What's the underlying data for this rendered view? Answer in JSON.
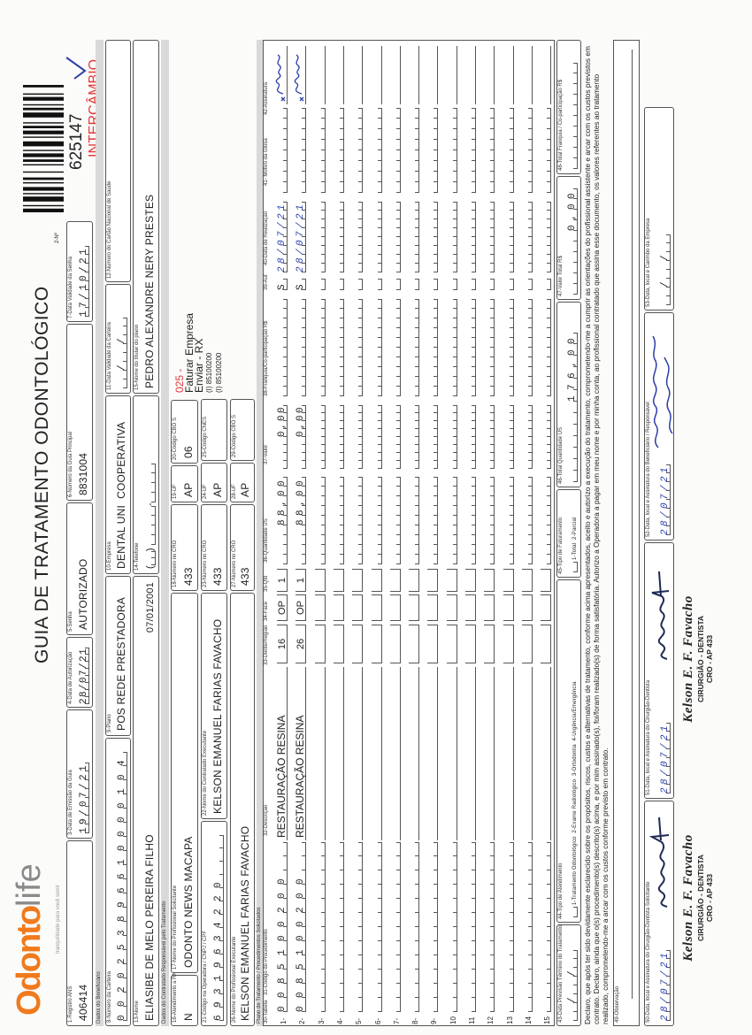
{
  "logo": {
    "brand_orange": "Odonto",
    "brand_gray": "life",
    "tagline": "tranquilidade para você sorrir",
    "color_orange": "#f07a1c"
  },
  "title": "GUIA DE TRATAMENTO ODONTOLÓGICO",
  "guide_number_label": "2-Nº",
  "barcode_number": "625147",
  "intercambio": "INTERCÂMBIO",
  "accent_red": "#e03a3a",
  "sections": {
    "beneficiario": "Dados do Beneficiário",
    "contratado": "Dados do Contratado Responsável pelo Tratamento",
    "plano": "Plano de Tratamento / Procedimentos Solicitados"
  },
  "fields": {
    "f1": {
      "label": "1-Registro ANS",
      "value": "406414"
    },
    "f3": {
      "label": "3-Data de Emissão da Guia",
      "value": "19/07/21"
    },
    "f4": {
      "label": "4-Data de Autorização",
      "value": "28/07/21"
    },
    "f5": {
      "label": "5-Senha",
      "value": "AUTORIZADO"
    },
    "f6": {
      "label": "6-Número da Guia Principal",
      "value": "8831004"
    },
    "f7": {
      "label": "7-Data Validade da Senha",
      "value": "17/10/21"
    },
    "f8": {
      "label": "8-Número da Carteira",
      "value": "0020253896610000104"
    },
    "f9": {
      "label": "9-Plano",
      "value": "POS REDE PRESTADORA"
    },
    "f10": {
      "label": "10-Empresa",
      "value": "DENTAL UNI  COOPERATIVA"
    },
    "f11": {
      "label": "11-Data Validade da Carteira",
      "value": "  /  /  "
    },
    "f12": {
      "label": "12-Número do Cartão Nacional de Saúde",
      "value": ""
    },
    "f13": {
      "label": "13-Nome",
      "value": "ELIASIBE DE MELO PEREIRA FILHO",
      "birthdate": "07/01/2001"
    },
    "f14": {
      "label": "14-Telefone",
      "value": ""
    },
    "f15": {
      "label": "15-Nome do titular do plano",
      "value": "PEDRO ALEXANDRE NERY PRESTES"
    },
    "f16": {
      "label": "16-Atendimento a RN",
      "value": "N"
    },
    "f17": {
      "label": "17-Nome do Profissional Solicitante",
      "value": "ODONTO NEWS MACAPA"
    },
    "f18": {
      "label": "18-Número no CRO",
      "value": "433"
    },
    "f19": {
      "label": "19-UF",
      "value": "AP"
    },
    "f20": {
      "label": "20-Código CBO S",
      "value": "06"
    },
    "f21": {
      "label": "21-Código na Operadora / CNPJ / CPF",
      "value": "69319634220"
    },
    "f22": {
      "label": "22-Nome do Contratado Executante",
      "value": "KELSON EMANUEL FARIAS FAVACHO"
    },
    "f23": {
      "label": "23-Número no CRO",
      "value": "433"
    },
    "f24": {
      "label": "24-UF",
      "value": "AP"
    },
    "f25": {
      "label": "25-Código CNES",
      "value": ""
    },
    "f26": {
      "label": "26-Nome do Profissional Executante",
      "value": "KELSON EMANUEL FARIAS FAVACHO"
    },
    "f27": {
      "label": "27-Número no CRO",
      "value": "433"
    },
    "f28": {
      "label": "28-UF",
      "value": "AP"
    },
    "f29": {
      "label": "29-Código CBO S",
      "value": ""
    }
  },
  "notes": {
    "code": "025 -",
    "lines": [
      "Faturar Empresa",
      "Enviar - RX",
      "(I) 85100200",
      "(I) 85100200"
    ]
  },
  "table": {
    "headers": {
      "tabela": "30-Tabela",
      "codigo": "31-Código do Procedimento",
      "descricao": "32-Descrição",
      "dente": "33-Dente/Região",
      "face": "34-Face",
      "qtd": "35-Qtd",
      "qtd_us": "36-Quantidade US",
      "valor": "37-Valor",
      "franquia": "38-Franquia/Co-participação R$",
      "aut": "39-Aut",
      "data": "40-Data de Realização",
      "glosa": "41- Motivo da Glosa",
      "assinatura": "42-Assinatura"
    },
    "rows": [
      {
        "n": "1-",
        "code": "0085100200",
        "desc": "RESTAURAÇÃO RESINA",
        "dente": "16",
        "face": "OP",
        "qtd": "1",
        "qtd_us": "88,00",
        "valor": "0,00",
        "franquia": "",
        "aut": "S",
        "data": "28/07/21",
        "glosa": ""
      },
      {
        "n": "2-",
        "code": "0085100200",
        "desc": "RESTAURAÇÃO RESINA",
        "dente": "26",
        "face": "OP",
        "qtd": "1",
        "qtd_us": "88,00",
        "valor": "0,00",
        "franquia": "",
        "aut": "S",
        "data": "28/07/21",
        "glosa": ""
      },
      {
        "n": "3-",
        "code": "",
        "desc": "",
        "dente": "",
        "face": "",
        "qtd": "",
        "qtd_us": "",
        "valor": "",
        "franquia": "",
        "aut": "",
        "data": "",
        "glosa": ""
      },
      {
        "n": "4-",
        "code": "",
        "desc": "",
        "dente": "",
        "face": "",
        "qtd": "",
        "qtd_us": "",
        "valor": "",
        "franquia": "",
        "aut": "",
        "data": "",
        "glosa": ""
      },
      {
        "n": "5-",
        "code": "",
        "desc": "",
        "dente": "",
        "face": "",
        "qtd": "",
        "qtd_us": "",
        "valor": "",
        "franquia": "",
        "aut": "",
        "data": "",
        "glosa": ""
      },
      {
        "n": "6-",
        "code": "",
        "desc": "",
        "dente": "",
        "face": "",
        "qtd": "",
        "qtd_us": "",
        "valor": "",
        "franquia": "",
        "aut": "",
        "data": "",
        "glosa": ""
      },
      {
        "n": "7-",
        "code": "",
        "desc": "",
        "dente": "",
        "face": "",
        "qtd": "",
        "qtd_us": "",
        "valor": "",
        "franquia": "",
        "aut": "",
        "data": "",
        "glosa": ""
      },
      {
        "n": "8-",
        "code": "",
        "desc": "",
        "dente": "",
        "face": "",
        "qtd": "",
        "qtd_us": "",
        "valor": "",
        "franquia": "",
        "aut": "",
        "data": "",
        "glosa": ""
      },
      {
        "n": "9-",
        "code": "",
        "desc": "",
        "dente": "",
        "face": "",
        "qtd": "",
        "qtd_us": "",
        "valor": "",
        "franquia": "",
        "aut": "",
        "data": "",
        "glosa": ""
      },
      {
        "n": "10",
        "code": "",
        "desc": "",
        "dente": "",
        "face": "",
        "qtd": "",
        "qtd_us": "",
        "valor": "",
        "franquia": "",
        "aut": "",
        "data": "",
        "glosa": ""
      },
      {
        "n": "11",
        "code": "",
        "desc": "",
        "dente": "",
        "face": "",
        "qtd": "",
        "qtd_us": "",
        "valor": "",
        "franquia": "",
        "aut": "",
        "data": "",
        "glosa": ""
      },
      {
        "n": "12",
        "code": "",
        "desc": "",
        "dente": "",
        "face": "",
        "qtd": "",
        "qtd_us": "",
        "valor": "",
        "franquia": "",
        "aut": "",
        "data": "",
        "glosa": ""
      },
      {
        "n": "13",
        "code": "",
        "desc": "",
        "dente": "",
        "face": "",
        "qtd": "",
        "qtd_us": "",
        "valor": "",
        "franquia": "",
        "aut": "",
        "data": "",
        "glosa": ""
      },
      {
        "n": "14",
        "code": "",
        "desc": "",
        "dente": "",
        "face": "",
        "qtd": "",
        "qtd_us": "",
        "valor": "",
        "franquia": "",
        "aut": "",
        "data": "",
        "glosa": ""
      },
      {
        "n": "15",
        "code": "",
        "desc": "",
        "dente": "",
        "face": "",
        "qtd": "",
        "qtd_us": "",
        "valor": "",
        "franquia": "",
        "aut": "",
        "data": "",
        "glosa": ""
      }
    ]
  },
  "totals": {
    "f43": {
      "label": "43-Data Previsão Término do Tratamento",
      "value": "  /  /  "
    },
    "f44": {
      "label": "44-Tipo de Atendimento",
      "options": "1-Tratamento Odontológico  2-Exame Radiológico  3-Ortodontia  4-Urgência/Emergência",
      "value": ""
    },
    "f45": {
      "label": "45-Tipo de Faturamento",
      "options": "1-Total  2-Parcial",
      "value": ""
    },
    "f46": {
      "label": "46-Total Quantidade US",
      "value": "176,00"
    },
    "f47": {
      "label": "47-Valor Total R$",
      "value": "0,00"
    },
    "f48": {
      "label": "48-Total Franquia / Co-participação R$",
      "value": ""
    }
  },
  "declaration": "Declaro, que após ter sido devidamente esclarecido sobre os propósitos, riscos, custos e alternativas de tratamento, conforme acima apresentados, aceito e autorizo a execução do tratamento, comprometendo-me a cumprir as orientações do profissional assistente e arcar com os custos previstos em contrato. Declaro, ainda que o(s) procedimento(s) descrito(s) acima, e por mim assinado(s), foi/foram realizado(s) de forma satisfatória. Autorizo a Operadora a pagar em meu nome e por minha conta, ao profissional contratado que assina esse documento, os valores referentes ao tratamento realizado, comprometendo-me a arcar com os custos conforme previsto em contrato.",
  "observacao": {
    "label": "49-Observação",
    "value": ""
  },
  "signatures": {
    "f50": {
      "label": "50-Data, local e Assinatura do Cirurgião-Dentista Solicitante",
      "date": "28/07/21"
    },
    "f51": {
      "label": "51-Data, local e Assinatura do Cirurgião-Dentista",
      "date": "28/07/21"
    },
    "f52": {
      "label": "52-Data, local e Assinatura do Beneficiário / Responsável",
      "date": "28/07/21"
    },
    "f53": {
      "label": "53-Data, local e Carimbo da Empresa",
      "date": "  /  /  "
    }
  },
  "stamp": {
    "name": "Kelson E. F. Favacho",
    "title": "CIRURGIÃO - DENTISTA",
    "cro": "CRO - AP 433"
  }
}
